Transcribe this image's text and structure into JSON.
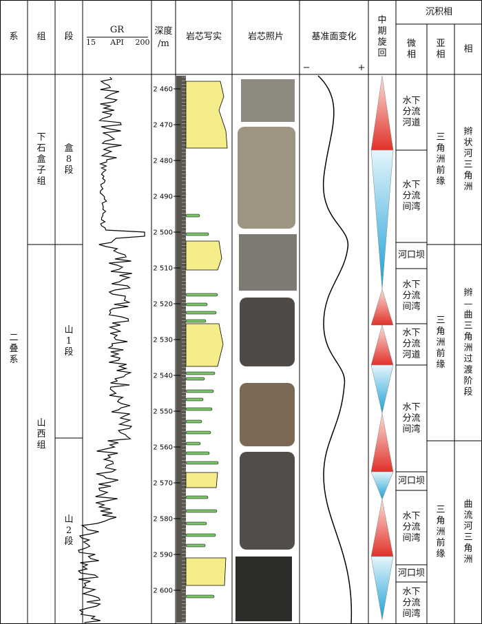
{
  "header": {
    "system": "系",
    "formation": "组",
    "member": "段",
    "gr": {
      "title": "GR",
      "min": 15,
      "unit": "API",
      "max": 200
    },
    "depth": {
      "title": "深度",
      "unit": "/m"
    },
    "core_sketch": "岩芯写实",
    "core_photo": "岩芯照片",
    "base_level": {
      "title": "基准面变化",
      "minus": "−",
      "plus": "+"
    },
    "cycle": "中期旋回",
    "facies": {
      "title": "沉积相",
      "micro": "微相",
      "sub": "亚相",
      "facies": "相"
    }
  },
  "depth_ticks": [
    {
      "value": 2460,
      "label": "2 460"
    },
    {
      "value": 2470,
      "label": "2 470"
    },
    {
      "value": 2480,
      "label": "2 480"
    },
    {
      "value": 2490,
      "label": "2 490"
    },
    {
      "value": 2500,
      "label": "2 500"
    },
    {
      "value": 2510,
      "label": "2 510"
    },
    {
      "value": 2520,
      "label": "2 520"
    },
    {
      "value": 2530,
      "label": "2 530"
    },
    {
      "value": 2540,
      "label": "2 540"
    },
    {
      "value": 2550,
      "label": "2 550"
    },
    {
      "value": 2560,
      "label": "2 560"
    },
    {
      "value": 2570,
      "label": "2 570"
    },
    {
      "value": 2580,
      "label": "2 580"
    },
    {
      "value": 2590,
      "label": "2 590"
    },
    {
      "value": 2600,
      "label": "2 600"
    }
  ],
  "system": "二叠系",
  "formations": [
    "下石盒子组",
    "山西组"
  ],
  "members": [
    "盒8段",
    "山1段",
    "山2段"
  ],
  "microfacies": [
    "水下分流河道",
    "水下分流间湾",
    "河口坝",
    "水下分流间湾",
    "水下分流河道",
    "水下分流间湾",
    "河口坝",
    "水下分流间湾",
    "河口坝",
    "水下分流间湾"
  ],
  "subfacies": [
    "三角洲前缘",
    "三角洲前缘",
    "三角洲前缘"
  ],
  "facies": [
    "辫状河三角洲",
    "辫—曲三角洲过渡阶段",
    "曲流河三角洲"
  ]
}
